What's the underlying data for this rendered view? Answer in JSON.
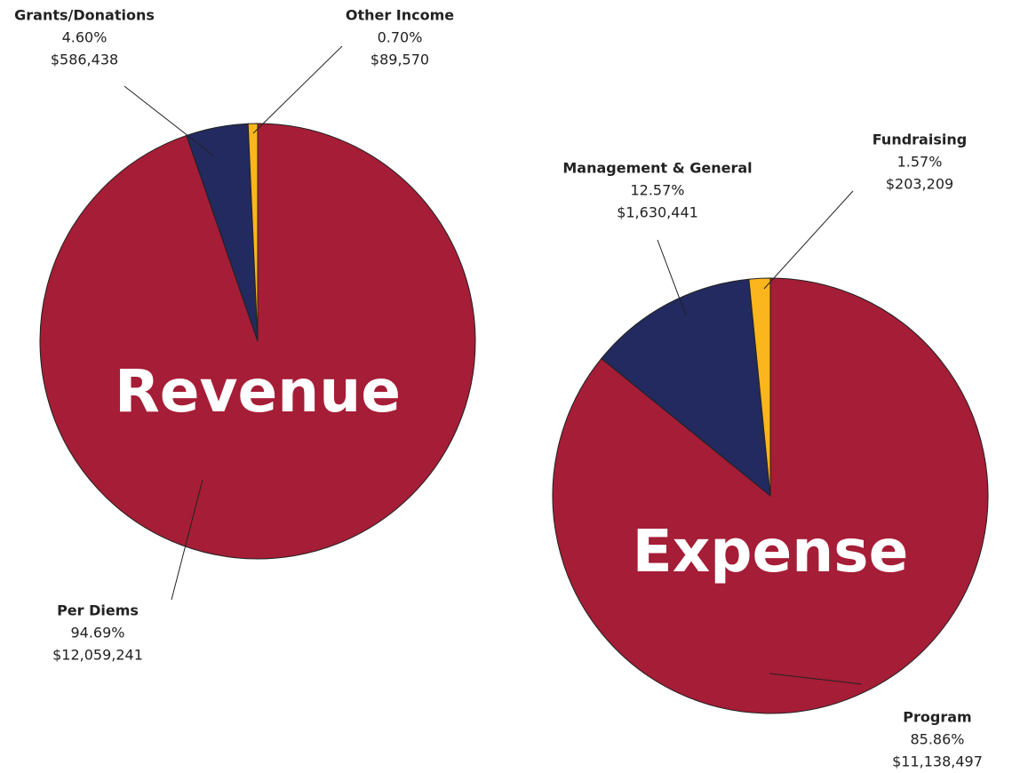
{
  "chart_data": [
    {
      "type": "pie",
      "title": "Revenue",
      "categories": [
        "Per Diems",
        "Grants/Donations",
        "Other Income"
      ],
      "values": [
        94.69,
        4.6,
        0.7
      ],
      "value_labels": [
        "94.69%",
        "4.60%",
        "0.70%"
      ],
      "amounts": [
        12059241,
        586438,
        89570
      ],
      "amount_labels": [
        "$12,059,241",
        "$586,438",
        "$89,570"
      ],
      "colors": [
        "#a51d36",
        "#222a5f",
        "#fbb51d"
      ]
    },
    {
      "type": "pie",
      "title": "Expense",
      "categories": [
        "Program",
        "Management & General",
        "Fundraising"
      ],
      "values": [
        85.86,
        12.57,
        1.57
      ],
      "value_labels": [
        "85.86%",
        "12.57%",
        "1.57%"
      ],
      "amounts": [
        11138497,
        1630441,
        203209
      ],
      "amount_labels": [
        "$11,138,497",
        "$1,630,441",
        "$203,209"
      ],
      "colors": [
        "#a51d36",
        "#222a5f",
        "#fbb51d"
      ]
    }
  ]
}
